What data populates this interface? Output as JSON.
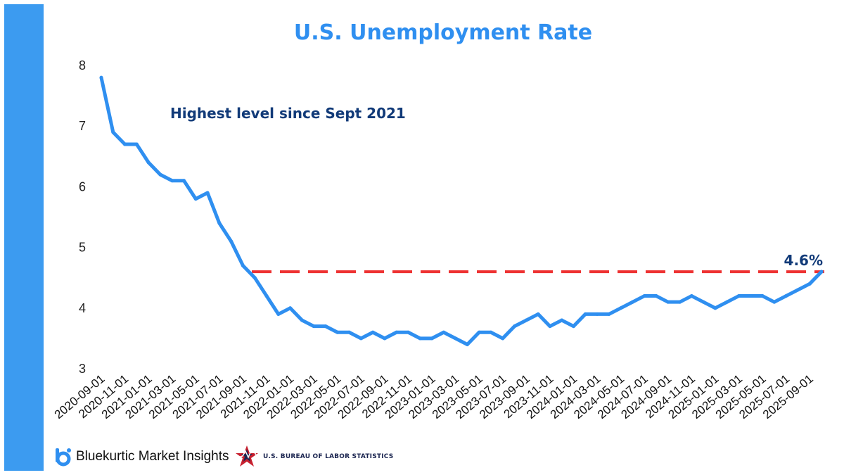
{
  "chart_data": {
    "type": "line",
    "title": "U.S. Unemployment Rate",
    "annotation": "Highest level since Sept 2021",
    "end_label": "4.6%",
    "reference_line": 4.6,
    "ylim": [
      3,
      8
    ],
    "yticks": [
      3,
      4,
      5,
      6,
      7,
      8
    ],
    "xlabel": "",
    "ylabel": "",
    "series": [
      {
        "name": "Unemployment Rate",
        "color": "#2f8ff0",
        "values": [
          7.8,
          6.9,
          6.7,
          6.7,
          6.4,
          6.2,
          6.1,
          6.1,
          5.8,
          5.9,
          5.4,
          5.1,
          4.7,
          4.5,
          4.2,
          3.9,
          4.0,
          3.8,
          3.7,
          3.7,
          3.6,
          3.6,
          3.5,
          3.6,
          3.5,
          3.6,
          3.6,
          3.5,
          3.5,
          3.6,
          3.5,
          3.4,
          3.6,
          3.6,
          3.5,
          3.7,
          3.8,
          3.9,
          3.7,
          3.8,
          3.7,
          3.9,
          3.9,
          3.9,
          4.0,
          4.1,
          4.2,
          4.2,
          4.1,
          4.1,
          4.2,
          4.1,
          4.0,
          4.1,
          4.2,
          4.2,
          4.2,
          4.1,
          4.2,
          4.3,
          4.4,
          4.6
        ]
      }
    ],
    "reference_color": "#ee3333",
    "x_tick_labels": [
      "2020-09-01",
      "2020-11-01",
      "2021-01-01",
      "2021-03-01",
      "2021-05-01",
      "2021-07-01",
      "2021-09-01",
      "2021-11-01",
      "2022-01-01",
      "2022-03-01",
      "2022-05-01",
      "2022-07-01",
      "2022-09-01",
      "2022-11-01",
      "2023-01-01",
      "2023-03-01",
      "2023-05-01",
      "2023-07-01",
      "2023-09-01",
      "2023-11-01",
      "2024-01-01",
      "2024-03-01",
      "2024-05-01",
      "2024-07-01",
      "2024-09-01",
      "2024-11-01",
      "2025-01-01",
      "2025-03-01",
      "2025-05-01",
      "2025-07-01",
      "2025-09-01"
    ]
  },
  "footer": {
    "brand_name": "Bluekurtic Market Insights",
    "source_name": "U.S. BUREAU OF LABOR STATISTICS"
  }
}
